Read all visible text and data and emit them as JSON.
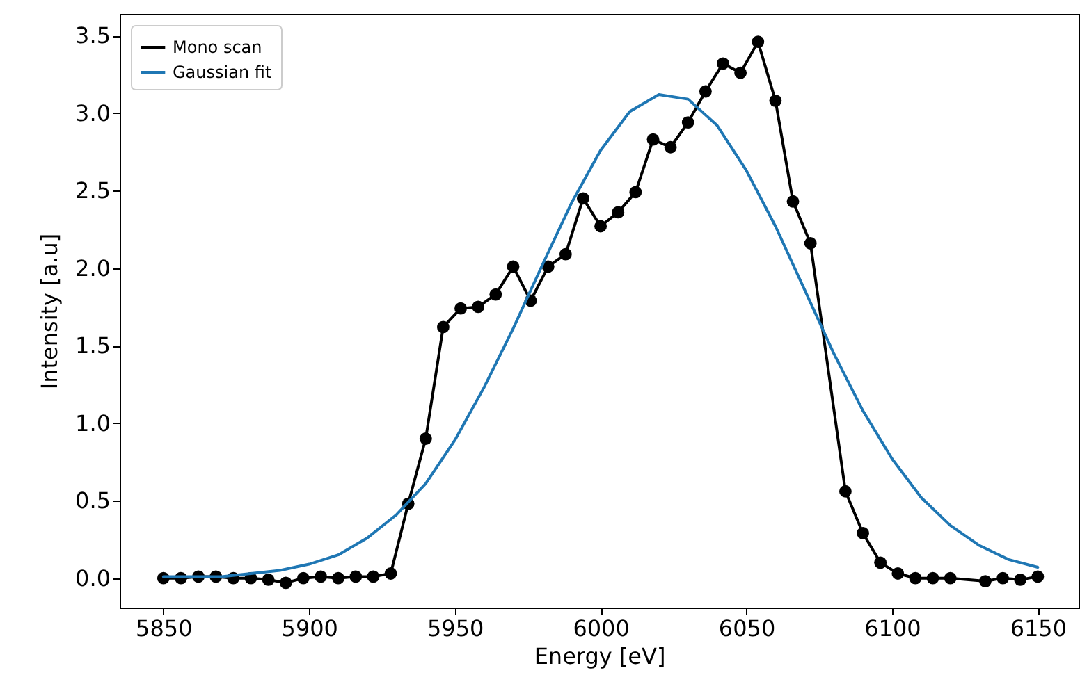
{
  "chart_data": {
    "type": "line",
    "xlabel": "Energy [eV]",
    "ylabel": "Intensity [a.u]",
    "xlim": [
      5835,
      6164
    ],
    "ylim": [
      -0.19,
      3.64
    ],
    "xticks": [
      5850,
      5900,
      5950,
      6000,
      6050,
      6100,
      6150
    ],
    "yticks": [
      {
        "value": 0,
        "label": "0.0"
      },
      0.5,
      {
        "value": 1,
        "label": "1.0"
      },
      1.5,
      {
        "value": 2,
        "label": "2.0"
      },
      2.5,
      {
        "value": 3,
        "label": "3.0"
      },
      3.5
    ],
    "grid": false,
    "legend": "top left",
    "line_style": "solid",
    "series": [
      {
        "name": "Mono scan",
        "color": "#000000",
        "marker": "circle",
        "x": [
          5850,
          5856,
          5862,
          5868,
          5874,
          5880,
          5886,
          5892,
          5898,
          5904,
          5910,
          5916,
          5922,
          5928,
          5934,
          5940,
          5946,
          5952,
          5958,
          5964,
          5970,
          5976,
          5982,
          5988,
          5994,
          6000,
          6006,
          6012,
          6018,
          6024,
          6030,
          6036,
          6042,
          6048,
          6054,
          6060,
          6066,
          6072,
          6084,
          6090,
          6096,
          6102,
          6108,
          6114,
          6120,
          6132,
          6138,
          6144,
          6150
        ],
        "values": [
          0,
          0,
          0.01,
          0.01,
          0,
          0,
          -0.01,
          -0.03,
          0,
          0.01,
          0,
          0.01,
          0.01,
          0.03,
          0.48,
          0.9,
          1.62,
          1.74,
          1.75,
          1.83,
          2.01,
          1.79,
          2.01,
          2.09,
          2.45,
          2.27,
          2.36,
          2.49,
          2.83,
          2.78,
          2.94,
          3.14,
          3.32,
          3.26,
          3.46,
          3.08,
          2.43,
          2.16,
          0.56,
          0.29,
          0.1,
          0.03,
          0,
          0,
          0,
          -0.02,
          0,
          -0.01,
          0.01
        ]
      },
      {
        "name": "Gaussian fit",
        "color": "#1f77b4",
        "marker": "none",
        "x": [
          5850,
          5860,
          5870,
          5880,
          5890,
          5900,
          5910,
          5920,
          5930,
          5940,
          5950,
          5960,
          5970,
          5980,
          5990,
          6000,
          6010,
          6020,
          6030,
          6040,
          6050,
          6060,
          6070,
          6080,
          6090,
          6100,
          6110,
          6120,
          6130,
          6140,
          6150
        ],
        "values": [
          0.01,
          0.01,
          0.01,
          0.03,
          0.05,
          0.09,
          0.15,
          0.26,
          0.41,
          0.61,
          0.89,
          1.23,
          1.61,
          2.02,
          2.42,
          2.76,
          3.01,
          3.12,
          3.09,
          2.92,
          2.63,
          2.27,
          1.86,
          1.45,
          1.08,
          0.77,
          0.52,
          0.34,
          0.21,
          0.12,
          0.07
        ]
      }
    ]
  }
}
